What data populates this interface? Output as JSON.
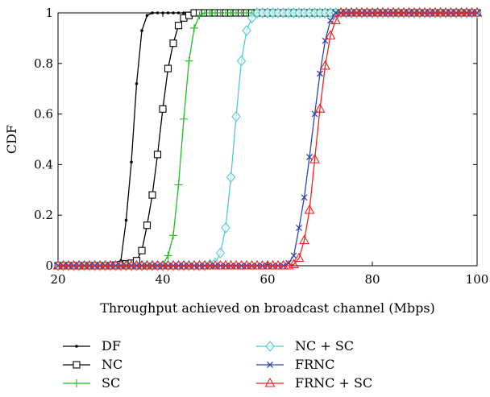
{
  "chart_data": {
    "type": "line",
    "xlabel": "Throughput achieved on broadcast channel (Mbps)",
    "ylabel": "CDF",
    "xlim": [
      20,
      100
    ],
    "ylim": [
      0,
      1
    ],
    "xticks": [
      20,
      40,
      60,
      80,
      100
    ],
    "yticks": [
      0,
      0.2,
      0.4,
      0.6,
      0.8,
      1
    ],
    "xtick_labels": [
      "20",
      "40",
      "60",
      "80",
      "100"
    ],
    "ytick_labels": [
      "0",
      "0.2",
      "0.4",
      "0.6",
      "0.8",
      "1"
    ],
    "grid": false,
    "legend_position": "below the plot, two columns",
    "series": [
      {
        "name": "DF",
        "color": "#000000",
        "marker": "dot",
        "x": [
          20,
          24,
          28,
          31,
          32,
          33,
          34,
          35,
          36,
          37,
          38,
          40,
          44,
          50,
          60,
          80,
          100
        ],
        "y": [
          0,
          0,
          0,
          0.005,
          0.02,
          0.18,
          0.41,
          0.72,
          0.93,
          0.99,
          1,
          1,
          1,
          1,
          1,
          1,
          1
        ]
      },
      {
        "name": "NC",
        "color": "#000000",
        "marker": "square",
        "x": [
          20,
          26,
          30,
          34,
          35,
          36,
          37,
          38,
          39,
          40,
          41,
          42,
          43,
          44,
          45,
          46,
          48,
          50,
          60,
          80,
          100
        ],
        "y": [
          0,
          0,
          0,
          0.01,
          0.02,
          0.06,
          0.16,
          0.28,
          0.44,
          0.62,
          0.78,
          0.88,
          0.95,
          0.98,
          0.99,
          1,
          1,
          1,
          1,
          1,
          1
        ]
      },
      {
        "name": "SC",
        "color": "#22bb22",
        "marker": "plus",
        "x": [
          20,
          30,
          38,
          40,
          41,
          42,
          43,
          44,
          45,
          46,
          47,
          48,
          50,
          55,
          60,
          80,
          100
        ],
        "y": [
          0,
          0,
          0,
          0.005,
          0.04,
          0.12,
          0.32,
          0.58,
          0.81,
          0.94,
          0.99,
          1,
          1,
          1,
          1,
          1,
          1
        ]
      },
      {
        "name": "NC + SC",
        "color": "#55c8d8",
        "marker": "diamond",
        "x": [
          20,
          30,
          40,
          48,
          50,
          51,
          52,
          53,
          54,
          55,
          56,
          57,
          58,
          59,
          60,
          62,
          70,
          80,
          100
        ],
        "y": [
          0,
          0,
          0,
          0,
          0.01,
          0.05,
          0.15,
          0.35,
          0.59,
          0.81,
          0.93,
          0.98,
          1,
          1,
          1,
          1,
          1,
          1,
          1
        ]
      },
      {
        "name": "FRNC",
        "color": "#3344aa",
        "marker": "x",
        "x": [
          20,
          30,
          40,
          50,
          60,
          63,
          64,
          65,
          66,
          67,
          68,
          69,
          70,
          71,
          72,
          73,
          74,
          76,
          80,
          90,
          100
        ],
        "y": [
          0,
          0,
          0,
          0,
          0,
          0,
          0.01,
          0.04,
          0.15,
          0.27,
          0.43,
          0.6,
          0.76,
          0.89,
          0.97,
          1,
          1,
          1,
          1,
          1,
          1
        ]
      },
      {
        "name": "FRNC + SC",
        "color": "#ee2222",
        "marker": "triangle",
        "x": [
          20,
          30,
          40,
          50,
          60,
          64,
          65,
          66,
          67,
          68,
          69,
          70,
          71,
          72,
          73,
          74,
          75,
          76,
          80,
          90,
          100
        ],
        "y": [
          0,
          0,
          0,
          0,
          0,
          0,
          0.005,
          0.03,
          0.1,
          0.22,
          0.42,
          0.62,
          0.79,
          0.91,
          0.97,
          1,
          1,
          1,
          1,
          1,
          1
        ]
      }
    ]
  }
}
